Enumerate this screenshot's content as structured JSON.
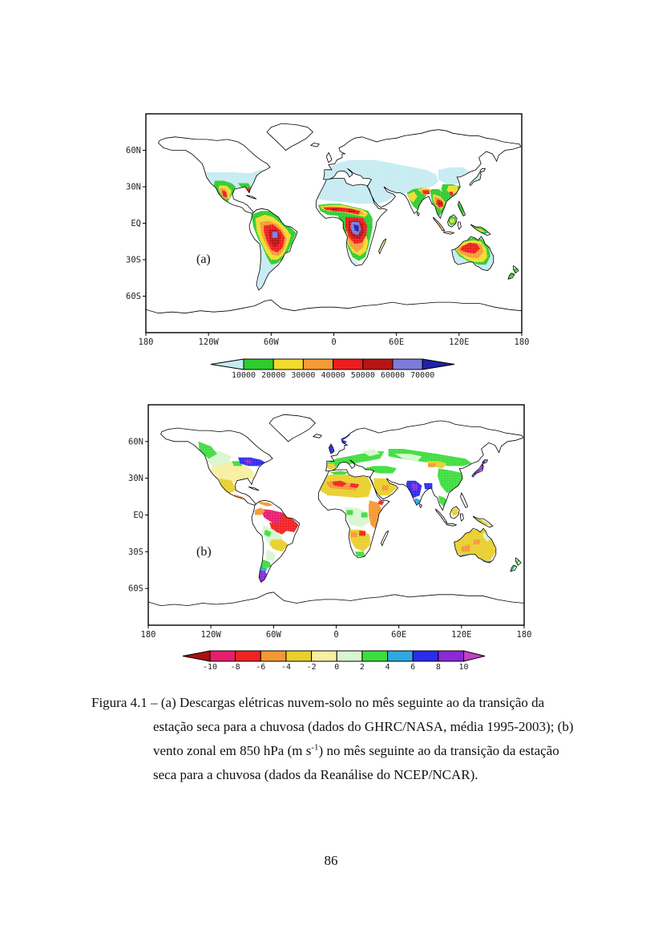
{
  "page": {
    "number": "86"
  },
  "figure": {
    "panels": [
      {
        "label": "(a)",
        "y_ticks": [
          "60N",
          "30N",
          "EQ",
          "30S",
          "60S"
        ],
        "x_ticks": [
          "180",
          "120W",
          "60W",
          "0",
          "60E",
          "120E",
          "180"
        ],
        "colorbar": {
          "labels": [
            "10000",
            "20000",
            "30000",
            "40000",
            "50000",
            "60000",
            "70000"
          ],
          "left_arrow_color": "#c6ebf2",
          "segment_colors": [
            "#2ecc2e",
            "#f2da2e",
            "#f49c36",
            "#ee1d1d",
            "#b81414",
            "#7c7cdc"
          ],
          "right_arrow_color": "#2121a6"
        }
      },
      {
        "label": "(b)",
        "y_ticks": [
          "60N",
          "30N",
          "EQ",
          "30S",
          "60S"
        ],
        "x_ticks": [
          "180",
          "120W",
          "60W",
          "0",
          "60E",
          "120E",
          "180"
        ],
        "colorbar": {
          "labels": [
            "-10",
            "-8",
            "-6",
            "-4",
            "-2",
            "0",
            "2",
            "4",
            "6",
            "8",
            "10"
          ],
          "left_arrow_color": "#aa1111",
          "segment_colors": [
            "#e61e6e",
            "#f12222",
            "#f49833",
            "#e9cf2c",
            "#f7efa2",
            "#d8f6d0",
            "#3edd3e",
            "#2fa9e2",
            "#2c2cec",
            "#8a2ad6"
          ],
          "right_arrow_color": "#c440c4"
        }
      }
    ]
  },
  "caption": {
    "lines": [
      {
        "text": "Figura 4.1 – (a) Descargas elétricas nuvem-solo no mês seguinte ao da transição da",
        "indent": false
      },
      {
        "text": "estação seca para a chuvosa (dados do GHRC/NASA, média 1995-2003); (b)",
        "indent": true
      },
      {
        "parts": [
          "vento zonal em 850 hPa (m s",
          "-1",
          ") no mês seguinte ao da transição da estação"
        ],
        "indent": true
      },
      {
        "text": "seca para a chuvosa (dados da Reanálise do NCEP/NCAR).",
        "indent": true
      }
    ]
  }
}
